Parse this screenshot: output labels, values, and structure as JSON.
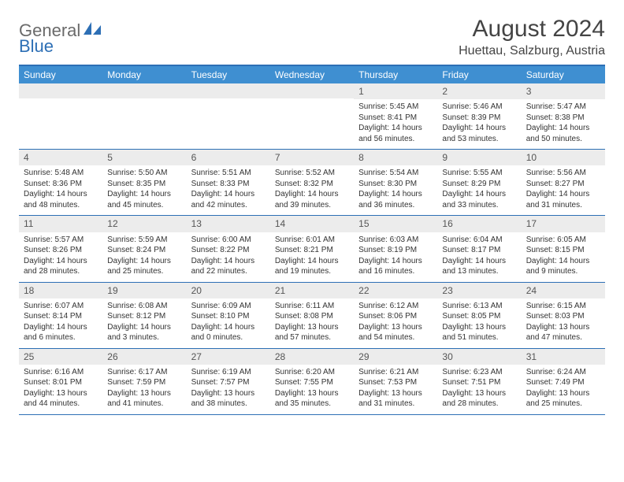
{
  "logo": {
    "part1": "General",
    "part2": "Blue"
  },
  "title": "August 2024",
  "location": "Huettau, Salzburg, Austria",
  "colors": {
    "headerBg": "#3f8fd1",
    "borderBlue": "#2d6fb5",
    "dayNumBg": "#ececec",
    "textDark": "#333333",
    "logoGray": "#6a6a6a",
    "logoBlue": "#2d6fb5",
    "pageBg": "#ffffff"
  },
  "dayNames": [
    "Sunday",
    "Monday",
    "Tuesday",
    "Wednesday",
    "Thursday",
    "Friday",
    "Saturday"
  ],
  "weeks": [
    [
      {
        "empty": true
      },
      {
        "empty": true
      },
      {
        "empty": true
      },
      {
        "empty": true
      },
      {
        "n": "1",
        "sr": "Sunrise: 5:45 AM",
        "ss": "Sunset: 8:41 PM",
        "dl": "Daylight: 14 hours and 56 minutes."
      },
      {
        "n": "2",
        "sr": "Sunrise: 5:46 AM",
        "ss": "Sunset: 8:39 PM",
        "dl": "Daylight: 14 hours and 53 minutes."
      },
      {
        "n": "3",
        "sr": "Sunrise: 5:47 AM",
        "ss": "Sunset: 8:38 PM",
        "dl": "Daylight: 14 hours and 50 minutes."
      }
    ],
    [
      {
        "n": "4",
        "sr": "Sunrise: 5:48 AM",
        "ss": "Sunset: 8:36 PM",
        "dl": "Daylight: 14 hours and 48 minutes."
      },
      {
        "n": "5",
        "sr": "Sunrise: 5:50 AM",
        "ss": "Sunset: 8:35 PM",
        "dl": "Daylight: 14 hours and 45 minutes."
      },
      {
        "n": "6",
        "sr": "Sunrise: 5:51 AM",
        "ss": "Sunset: 8:33 PM",
        "dl": "Daylight: 14 hours and 42 minutes."
      },
      {
        "n": "7",
        "sr": "Sunrise: 5:52 AM",
        "ss": "Sunset: 8:32 PM",
        "dl": "Daylight: 14 hours and 39 minutes."
      },
      {
        "n": "8",
        "sr": "Sunrise: 5:54 AM",
        "ss": "Sunset: 8:30 PM",
        "dl": "Daylight: 14 hours and 36 minutes."
      },
      {
        "n": "9",
        "sr": "Sunrise: 5:55 AM",
        "ss": "Sunset: 8:29 PM",
        "dl": "Daylight: 14 hours and 33 minutes."
      },
      {
        "n": "10",
        "sr": "Sunrise: 5:56 AM",
        "ss": "Sunset: 8:27 PM",
        "dl": "Daylight: 14 hours and 31 minutes."
      }
    ],
    [
      {
        "n": "11",
        "sr": "Sunrise: 5:57 AM",
        "ss": "Sunset: 8:26 PM",
        "dl": "Daylight: 14 hours and 28 minutes."
      },
      {
        "n": "12",
        "sr": "Sunrise: 5:59 AM",
        "ss": "Sunset: 8:24 PM",
        "dl": "Daylight: 14 hours and 25 minutes."
      },
      {
        "n": "13",
        "sr": "Sunrise: 6:00 AM",
        "ss": "Sunset: 8:22 PM",
        "dl": "Daylight: 14 hours and 22 minutes."
      },
      {
        "n": "14",
        "sr": "Sunrise: 6:01 AM",
        "ss": "Sunset: 8:21 PM",
        "dl": "Daylight: 14 hours and 19 minutes."
      },
      {
        "n": "15",
        "sr": "Sunrise: 6:03 AM",
        "ss": "Sunset: 8:19 PM",
        "dl": "Daylight: 14 hours and 16 minutes."
      },
      {
        "n": "16",
        "sr": "Sunrise: 6:04 AM",
        "ss": "Sunset: 8:17 PM",
        "dl": "Daylight: 14 hours and 13 minutes."
      },
      {
        "n": "17",
        "sr": "Sunrise: 6:05 AM",
        "ss": "Sunset: 8:15 PM",
        "dl": "Daylight: 14 hours and 9 minutes."
      }
    ],
    [
      {
        "n": "18",
        "sr": "Sunrise: 6:07 AM",
        "ss": "Sunset: 8:14 PM",
        "dl": "Daylight: 14 hours and 6 minutes."
      },
      {
        "n": "19",
        "sr": "Sunrise: 6:08 AM",
        "ss": "Sunset: 8:12 PM",
        "dl": "Daylight: 14 hours and 3 minutes."
      },
      {
        "n": "20",
        "sr": "Sunrise: 6:09 AM",
        "ss": "Sunset: 8:10 PM",
        "dl": "Daylight: 14 hours and 0 minutes."
      },
      {
        "n": "21",
        "sr": "Sunrise: 6:11 AM",
        "ss": "Sunset: 8:08 PM",
        "dl": "Daylight: 13 hours and 57 minutes."
      },
      {
        "n": "22",
        "sr": "Sunrise: 6:12 AM",
        "ss": "Sunset: 8:06 PM",
        "dl": "Daylight: 13 hours and 54 minutes."
      },
      {
        "n": "23",
        "sr": "Sunrise: 6:13 AM",
        "ss": "Sunset: 8:05 PM",
        "dl": "Daylight: 13 hours and 51 minutes."
      },
      {
        "n": "24",
        "sr": "Sunrise: 6:15 AM",
        "ss": "Sunset: 8:03 PM",
        "dl": "Daylight: 13 hours and 47 minutes."
      }
    ],
    [
      {
        "n": "25",
        "sr": "Sunrise: 6:16 AM",
        "ss": "Sunset: 8:01 PM",
        "dl": "Daylight: 13 hours and 44 minutes."
      },
      {
        "n": "26",
        "sr": "Sunrise: 6:17 AM",
        "ss": "Sunset: 7:59 PM",
        "dl": "Daylight: 13 hours and 41 minutes."
      },
      {
        "n": "27",
        "sr": "Sunrise: 6:19 AM",
        "ss": "Sunset: 7:57 PM",
        "dl": "Daylight: 13 hours and 38 minutes."
      },
      {
        "n": "28",
        "sr": "Sunrise: 6:20 AM",
        "ss": "Sunset: 7:55 PM",
        "dl": "Daylight: 13 hours and 35 minutes."
      },
      {
        "n": "29",
        "sr": "Sunrise: 6:21 AM",
        "ss": "Sunset: 7:53 PM",
        "dl": "Daylight: 13 hours and 31 minutes."
      },
      {
        "n": "30",
        "sr": "Sunrise: 6:23 AM",
        "ss": "Sunset: 7:51 PM",
        "dl": "Daylight: 13 hours and 28 minutes."
      },
      {
        "n": "31",
        "sr": "Sunrise: 6:24 AM",
        "ss": "Sunset: 7:49 PM",
        "dl": "Daylight: 13 hours and 25 minutes."
      }
    ]
  ]
}
